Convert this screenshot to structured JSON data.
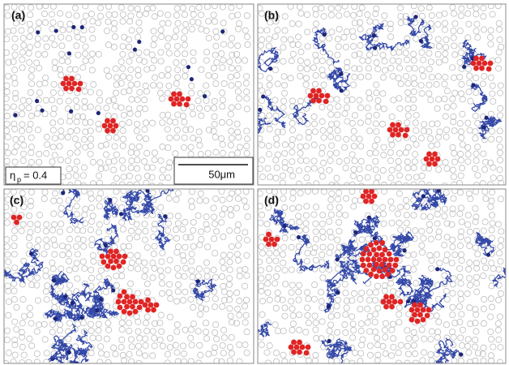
{
  "panels": [
    {
      "label": "(a)"
    },
    {
      "label": "(b)"
    },
    {
      "label": "(c)"
    },
    {
      "label": "(d)"
    }
  ],
  "annotation": {
    "symbol": "η",
    "subscript": "p",
    "text": "= 0.4"
  },
  "scale_bar": {
    "label": "50μm"
  }
}
